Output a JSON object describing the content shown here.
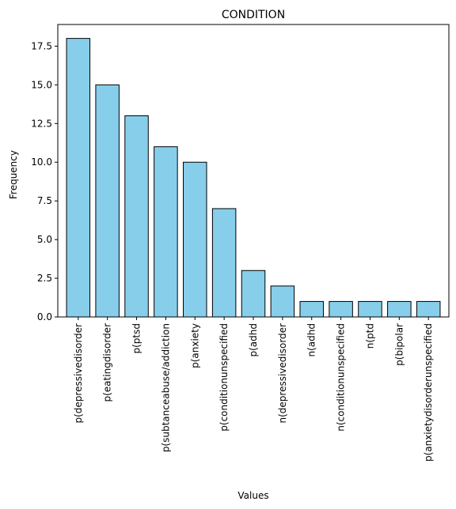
{
  "chart_data": {
    "type": "bar",
    "title": "CONDITION",
    "xlabel": "Values",
    "ylabel": "Frequency",
    "categories": [
      "p(depressivedisorder",
      "p(eatingdisorder",
      "p(ptsd",
      "p(subtanceabuse/addiction",
      "p(anxiety",
      "p(conditionunspecified",
      "p(adhd",
      "n(depressivedisorder",
      "n(adhd",
      "n(conditionunspecified",
      "n(ptd",
      "p(bipolar",
      "p(anxietydisorderunspecified"
    ],
    "values": [
      18,
      15,
      13,
      11,
      10,
      7,
      3,
      2,
      1,
      1,
      1,
      1,
      1
    ],
    "ylim": [
      0,
      18.9
    ],
    "yticks": [
      "0.0",
      "2.5",
      "5.0",
      "7.5",
      "10.0",
      "12.5",
      "15.0",
      "17.5"
    ],
    "grid": false,
    "colors": {
      "bar_fill": "#87ceeb",
      "bar_edge": "#000000"
    }
  }
}
